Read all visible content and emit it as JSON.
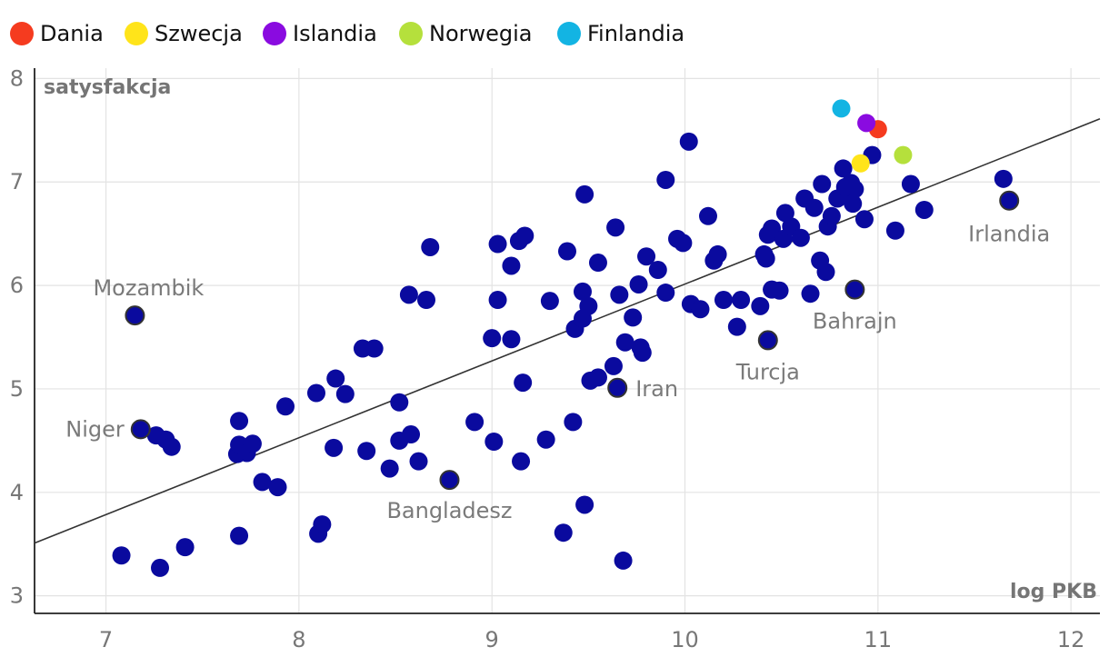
{
  "chart_data": {
    "type": "scatter",
    "xlabel": "log PKB",
    "ylabel": "satysfakcja",
    "xlim": [
      6.63,
      12.15
    ],
    "ylim": [
      2.83,
      8.1
    ],
    "x_ticks": [
      7,
      8,
      9,
      10,
      11,
      12
    ],
    "y_ticks": [
      3,
      4,
      5,
      6,
      7,
      8
    ],
    "grid": true,
    "legend_position": "top-left",
    "trendline": {
      "x1": 6.63,
      "y1": 3.51,
      "x2": 12.15,
      "y2": 7.61
    },
    "default_point_color": "#0a0a9e",
    "highlighted_series": [
      {
        "name": "Dania",
        "color": "#f53b1f",
        "x": 11.0,
        "y": 7.51
      },
      {
        "name": "Szwecja",
        "color": "#ffe41a",
        "x": 10.91,
        "y": 7.18
      },
      {
        "name": "Islandia",
        "color": "#8a0be0",
        "x": 10.94,
        "y": 7.57
      },
      {
        "name": "Norwegia",
        "color": "#b5e03c",
        "x": 11.13,
        "y": 7.26
      },
      {
        "name": "Finlandia",
        "color": "#13b4e3",
        "x": 10.81,
        "y": 7.71
      }
    ],
    "labeled_points": [
      {
        "label": "Mozambik",
        "x": 7.15,
        "y": 5.71
      },
      {
        "label": "Niger",
        "x": 7.18,
        "y": 4.61
      },
      {
        "label": "Bangladesz",
        "x": 8.78,
        "y": 4.12
      },
      {
        "label": "Iran",
        "x": 9.65,
        "y": 5.01
      },
      {
        "label": "Turcja",
        "x": 10.43,
        "y": 5.47
      },
      {
        "label": "Bahrajn",
        "x": 10.88,
        "y": 5.96
      },
      {
        "label": "Irlandia",
        "x": 11.68,
        "y": 6.82
      }
    ],
    "points": [
      [
        7.08,
        3.39
      ],
      [
        7.28,
        3.27
      ],
      [
        7.41,
        3.47
      ],
      [
        7.69,
        3.58
      ],
      [
        8.1,
        3.6
      ],
      [
        8.12,
        3.69
      ],
      [
        7.26,
        4.55
      ],
      [
        7.31,
        4.51
      ],
      [
        7.34,
        4.44
      ],
      [
        7.68,
        4.37
      ],
      [
        7.69,
        4.46
      ],
      [
        7.73,
        4.38
      ],
      [
        7.76,
        4.47
      ],
      [
        7.69,
        4.69
      ],
      [
        7.81,
        4.1
      ],
      [
        7.89,
        4.05
      ],
      [
        7.93,
        4.83
      ],
      [
        8.09,
        4.96
      ],
      [
        8.19,
        5.1
      ],
      [
        8.24,
        4.95
      ],
      [
        8.18,
        4.43
      ],
      [
        8.35,
        4.4
      ],
      [
        8.33,
        5.39
      ],
      [
        8.39,
        5.39
      ],
      [
        8.47,
        4.23
      ],
      [
        8.52,
        4.5
      ],
      [
        8.52,
        4.87
      ],
      [
        8.58,
        4.56
      ],
      [
        8.62,
        4.3
      ],
      [
        8.57,
        5.91
      ],
      [
        8.66,
        5.86
      ],
      [
        8.68,
        6.37
      ],
      [
        8.91,
        4.68
      ],
      [
        9.01,
        4.49
      ],
      [
        9.0,
        5.49
      ],
      [
        9.03,
        5.86
      ],
      [
        9.03,
        6.4
      ],
      [
        9.1,
        5.48
      ],
      [
        9.1,
        6.19
      ],
      [
        9.14,
        6.43
      ],
      [
        9.17,
        6.48
      ],
      [
        9.16,
        5.06
      ],
      [
        9.15,
        4.3
      ],
      [
        9.28,
        4.51
      ],
      [
        9.3,
        5.85
      ],
      [
        9.37,
        3.61
      ],
      [
        9.39,
        6.33
      ],
      [
        9.42,
        4.68
      ],
      [
        9.43,
        5.58
      ],
      [
        9.47,
        5.94
      ],
      [
        9.47,
        5.68
      ],
      [
        9.48,
        3.88
      ],
      [
        9.48,
        6.88
      ],
      [
        9.5,
        5.8
      ],
      [
        9.51,
        5.08
      ],
      [
        9.55,
        5.11
      ],
      [
        9.55,
        6.22
      ],
      [
        9.63,
        5.22
      ],
      [
        9.64,
        6.56
      ],
      [
        9.66,
        5.91
      ],
      [
        9.68,
        3.34
      ],
      [
        9.69,
        5.45
      ],
      [
        9.73,
        5.69
      ],
      [
        9.76,
        6.01
      ],
      [
        9.77,
        5.4
      ],
      [
        9.78,
        5.35
      ],
      [
        9.8,
        6.28
      ],
      [
        9.86,
        6.15
      ],
      [
        9.9,
        5.93
      ],
      [
        9.9,
        7.02
      ],
      [
        9.96,
        6.45
      ],
      [
        9.99,
        6.41
      ],
      [
        10.02,
        7.39
      ],
      [
        10.03,
        5.82
      ],
      [
        10.08,
        5.77
      ],
      [
        10.12,
        6.67
      ],
      [
        10.15,
        6.24
      ],
      [
        10.17,
        6.3
      ],
      [
        10.2,
        5.86
      ],
      [
        10.27,
        5.6
      ],
      [
        10.29,
        5.86
      ],
      [
        10.39,
        5.8
      ],
      [
        10.41,
        6.3
      ],
      [
        10.42,
        6.26
      ],
      [
        10.43,
        6.49
      ],
      [
        10.45,
        6.55
      ],
      [
        10.45,
        5.96
      ],
      [
        10.49,
        5.95
      ],
      [
        10.51,
        6.45
      ],
      [
        10.52,
        6.7
      ],
      [
        10.55,
        6.57
      ],
      [
        10.6,
        6.46
      ],
      [
        10.62,
        6.84
      ],
      [
        10.65,
        5.92
      ],
      [
        10.67,
        6.75
      ],
      [
        10.7,
        6.24
      ],
      [
        10.71,
        6.98
      ],
      [
        10.73,
        6.13
      ],
      [
        10.74,
        6.57
      ],
      [
        10.76,
        6.67
      ],
      [
        10.79,
        6.84
      ],
      [
        10.82,
        7.13
      ],
      [
        10.84,
        6.92
      ],
      [
        10.86,
        6.99
      ],
      [
        10.87,
        6.79
      ],
      [
        10.88,
        6.93
      ],
      [
        10.93,
        6.64
      ],
      [
        10.97,
        7.26
      ],
      [
        11.09,
        6.53
      ],
      [
        11.17,
        6.98
      ],
      [
        11.24,
        6.73
      ],
      [
        11.65,
        7.03
      ],
      [
        10.83,
        6.95
      ]
    ]
  }
}
